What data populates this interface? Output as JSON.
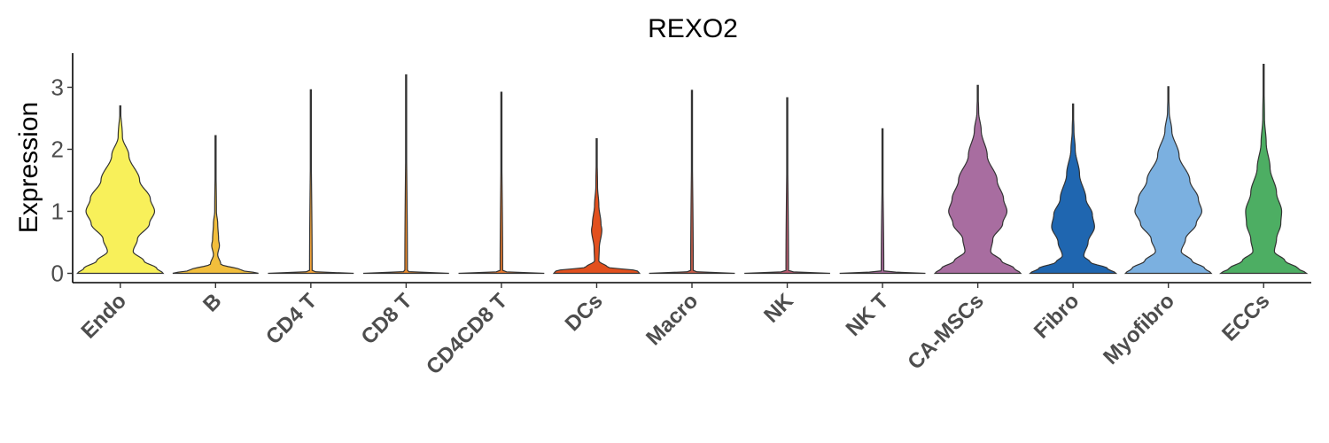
{
  "chart_data": {
    "type": "violin",
    "title": "REXO2",
    "xlabel": "",
    "ylabel": "Expression",
    "ylim": [
      -0.15,
      3.55
    ],
    "yticks": [
      0,
      1,
      2,
      3
    ],
    "grid": false,
    "legend": "none",
    "categories": [
      "Endo",
      "B",
      "CD4 T",
      "CD8 T",
      "CD4CD8 T",
      "DCs",
      "Macro",
      "NK",
      "NK T",
      "CA-MSCs",
      "Fibro",
      "Myofibro",
      "ECCs"
    ],
    "colors": [
      "#F8F05A",
      "#F2BE3C",
      "#F5A336",
      "#EE8B2C",
      "#E97A2E",
      "#E2501E",
      "#C85C48",
      "#B85A6E",
      "#A76A9A",
      "#A86DA0",
      "#1F66B0",
      "#7BB0E0",
      "#4DAE63"
    ],
    "violins": [
      {
        "name": "Endo",
        "max": 2.7,
        "profile": [
          [
            0,
            1.0
          ],
          [
            0.08,
            0.85
          ],
          [
            0.2,
            0.55
          ],
          [
            0.35,
            0.3
          ],
          [
            0.55,
            0.4
          ],
          [
            0.8,
            0.68
          ],
          [
            1.0,
            0.8
          ],
          [
            1.2,
            0.7
          ],
          [
            1.5,
            0.45
          ],
          [
            1.9,
            0.2
          ],
          [
            2.2,
            0.05
          ],
          [
            2.7,
            0.0
          ]
        ]
      },
      {
        "name": "B",
        "max": 2.22,
        "profile": [
          [
            0,
            1.0
          ],
          [
            0.05,
            0.6
          ],
          [
            0.15,
            0.12
          ],
          [
            0.3,
            0.05
          ],
          [
            0.45,
            0.09
          ],
          [
            0.55,
            0.07
          ],
          [
            0.8,
            0.05
          ],
          [
            1.0,
            0.02
          ],
          [
            2.22,
            0.0
          ]
        ]
      },
      {
        "name": "CD4 T",
        "max": 2.96,
        "profile": [
          [
            0,
            1.0
          ],
          [
            0.03,
            0.03
          ],
          [
            2.96,
            0.0
          ]
        ]
      },
      {
        "name": "CD8 T",
        "max": 3.2,
        "profile": [
          [
            0,
            1.0
          ],
          [
            0.03,
            0.03
          ],
          [
            3.2,
            0.0
          ]
        ]
      },
      {
        "name": "CD4CD8 T",
        "max": 2.92,
        "profile": [
          [
            0,
            1.0
          ],
          [
            0.03,
            0.03
          ],
          [
            2.92,
            0.0
          ]
        ]
      },
      {
        "name": "DCs",
        "max": 2.17,
        "profile": [
          [
            0,
            1.0
          ],
          [
            0.04,
            0.95
          ],
          [
            0.1,
            0.25
          ],
          [
            0.2,
            0.05
          ],
          [
            0.4,
            0.06
          ],
          [
            0.7,
            0.12
          ],
          [
            0.8,
            0.1
          ],
          [
            1.1,
            0.05
          ],
          [
            1.4,
            0.02
          ],
          [
            2.17,
            0.0
          ]
        ]
      },
      {
        "name": "Macro",
        "max": 2.95,
        "profile": [
          [
            0,
            1.0
          ],
          [
            0.03,
            0.03
          ],
          [
            2.95,
            0.0
          ]
        ]
      },
      {
        "name": "NK",
        "max": 2.83,
        "profile": [
          [
            0,
            1.0
          ],
          [
            0.03,
            0.03
          ],
          [
            2.83,
            0.0
          ]
        ]
      },
      {
        "name": "NK T",
        "max": 2.33,
        "profile": [
          [
            0,
            1.0
          ],
          [
            0.03,
            0.03
          ],
          [
            2.33,
            0.0
          ]
        ]
      },
      {
        "name": "CA-MSCs",
        "max": 3.03,
        "profile": [
          [
            0,
            1.0
          ],
          [
            0.08,
            0.85
          ],
          [
            0.2,
            0.55
          ],
          [
            0.35,
            0.3
          ],
          [
            0.55,
            0.35
          ],
          [
            0.8,
            0.58
          ],
          [
            1.0,
            0.68
          ],
          [
            1.2,
            0.6
          ],
          [
            1.5,
            0.45
          ],
          [
            1.9,
            0.22
          ],
          [
            2.3,
            0.08
          ],
          [
            2.6,
            0.02
          ],
          [
            3.03,
            0.0
          ]
        ]
      },
      {
        "name": "Fibro",
        "max": 2.73,
        "profile": [
          [
            0,
            1.0
          ],
          [
            0.08,
            0.8
          ],
          [
            0.18,
            0.4
          ],
          [
            0.28,
            0.25
          ],
          [
            0.5,
            0.35
          ],
          [
            0.75,
            0.5
          ],
          [
            0.95,
            0.45
          ],
          [
            1.2,
            0.3
          ],
          [
            1.6,
            0.15
          ],
          [
            2.0,
            0.05
          ],
          [
            2.3,
            0.02
          ],
          [
            2.73,
            0.0
          ]
        ]
      },
      {
        "name": "Myofibro",
        "max": 3.01,
        "profile": [
          [
            0,
            1.0
          ],
          [
            0.08,
            0.85
          ],
          [
            0.2,
            0.55
          ],
          [
            0.35,
            0.3
          ],
          [
            0.55,
            0.4
          ],
          [
            0.8,
            0.65
          ],
          [
            1.0,
            0.78
          ],
          [
            1.2,
            0.7
          ],
          [
            1.5,
            0.5
          ],
          [
            1.9,
            0.25
          ],
          [
            2.3,
            0.08
          ],
          [
            2.6,
            0.02
          ],
          [
            3.01,
            0.0
          ]
        ]
      },
      {
        "name": "ECCs",
        "max": 3.37,
        "profile": [
          [
            0,
            1.0
          ],
          [
            0.08,
            0.8
          ],
          [
            0.2,
            0.5
          ],
          [
            0.35,
            0.25
          ],
          [
            0.55,
            0.3
          ],
          [
            0.8,
            0.4
          ],
          [
            1.0,
            0.42
          ],
          [
            1.3,
            0.3
          ],
          [
            1.7,
            0.15
          ],
          [
            2.1,
            0.06
          ],
          [
            2.5,
            0.02
          ],
          [
            3.37,
            0.0
          ]
        ]
      }
    ]
  }
}
